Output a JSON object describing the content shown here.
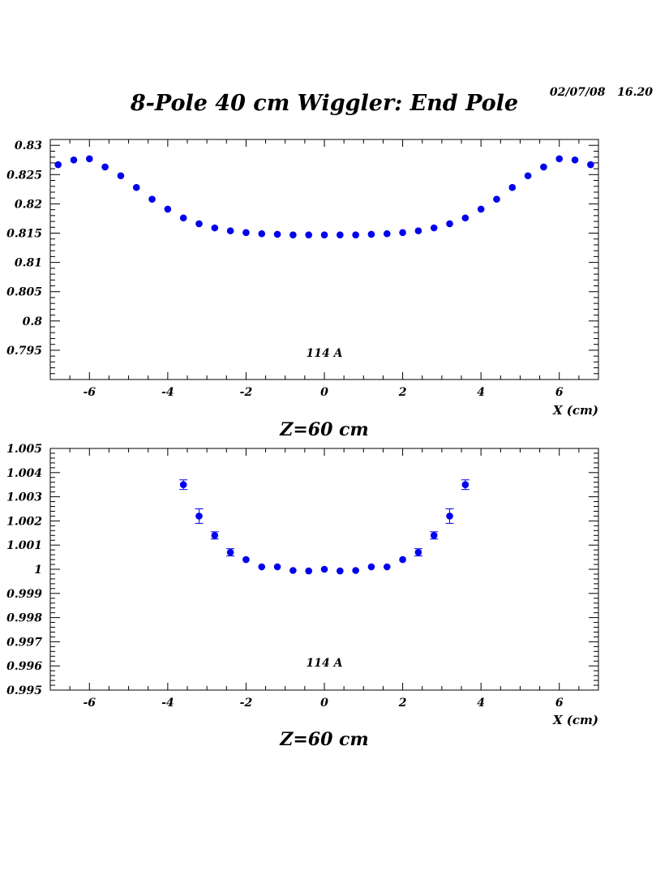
{
  "page": {
    "title": "8-Pole 40 cm Wiggler: End Pole",
    "date": "02/07/08",
    "time": "16.20"
  },
  "colors": {
    "marker": "#0000ee",
    "axis": "#000000"
  },
  "chart_data": [
    {
      "type": "scatter",
      "xlabel": "X (cm)",
      "ylabel": "",
      "caption": "Z=60 cm",
      "annotation": "114 A",
      "xlim": [
        -7,
        7
      ],
      "ylim": [
        0.79,
        0.831
      ],
      "xticks": [
        -6,
        -4,
        -2,
        0,
        2,
        4,
        6
      ],
      "xtick_labels": [
        "-6",
        "-4",
        "-2",
        "0",
        "2",
        "4",
        "6"
      ],
      "yticks": [
        0.795,
        0.8,
        0.805,
        0.81,
        0.815,
        0.82,
        0.825,
        0.83
      ],
      "ytick_labels": [
        "0.795",
        "0.8",
        "0.805",
        "0.81",
        "0.815",
        "0.82",
        "0.825",
        "0.83"
      ],
      "series": [
        {
          "x": [
            -6.8,
            -6.4,
            -6.0,
            -5.6,
            -5.2,
            -4.8,
            -4.4,
            -4.0,
            -3.6,
            -3.2,
            -2.8,
            -2.4,
            -2.0,
            -1.6,
            -1.2,
            -0.8,
            -0.4,
            0.0,
            0.4,
            0.8,
            1.2,
            1.6,
            2.0,
            2.4,
            2.8,
            3.2,
            3.6,
            4.0,
            4.4,
            4.8,
            5.2,
            5.6,
            6.0,
            6.4,
            6.8
          ],
          "y": [
            0.8267,
            0.8275,
            0.8277,
            0.8263,
            0.8248,
            0.8228,
            0.8208,
            0.8191,
            0.8176,
            0.8166,
            0.8159,
            0.8154,
            0.8151,
            0.8149,
            0.8148,
            0.8147,
            0.8147,
            0.8147,
            0.8147,
            0.8147,
            0.8148,
            0.8149,
            0.8151,
            0.8154,
            0.8159,
            0.8166,
            0.8176,
            0.8191,
            0.8208,
            0.8228,
            0.8248,
            0.8263,
            0.8277,
            0.8275,
            0.8267
          ],
          "err": []
        }
      ]
    },
    {
      "type": "scatter",
      "xlabel": "X (cm)",
      "ylabel": "",
      "caption": "Z=60 cm",
      "annotation": "114 A",
      "xlim": [
        -7,
        7
      ],
      "ylim": [
        0.995,
        1.005
      ],
      "xticks": [
        -6,
        -4,
        -2,
        0,
        2,
        4,
        6
      ],
      "xtick_labels": [
        "-6",
        "-4",
        "-2",
        "0",
        "2",
        "4",
        "6"
      ],
      "yticks": [
        0.995,
        0.996,
        0.997,
        0.998,
        0.999,
        1.0,
        1.001,
        1.002,
        1.003,
        1.004,
        1.005
      ],
      "ytick_labels": [
        "0.995",
        "0.996",
        "0.997",
        "0.998",
        "0.999",
        "1",
        "1.001",
        "1.002",
        "1.003",
        "1.004",
        "1.005"
      ],
      "series": [
        {
          "x": [
            -3.6,
            -3.2,
            -2.8,
            -2.4,
            -2.0,
            -1.6,
            -1.2,
            -0.8,
            -0.4,
            0.0,
            0.4,
            0.8,
            1.2,
            1.6,
            2.0,
            2.4,
            2.8,
            3.2,
            3.6
          ],
          "y": [
            1.0035,
            1.0022,
            1.0014,
            1.0007,
            1.0004,
            1.0001,
            1.0001,
            0.99995,
            0.99993,
            1.0,
            0.99993,
            0.99995,
            1.0001,
            1.0001,
            1.0004,
            1.0007,
            1.0014,
            1.0022,
            1.0035
          ],
          "err": [
            0.0002,
            0.0003,
            0.00015,
            0.00015,
            0.0,
            0.0,
            0.0,
            0.0,
            0.0,
            0.0,
            0.0,
            0.0,
            0.0,
            0.0,
            0.0,
            0.00015,
            0.00015,
            0.0003,
            0.0002
          ]
        }
      ]
    }
  ]
}
